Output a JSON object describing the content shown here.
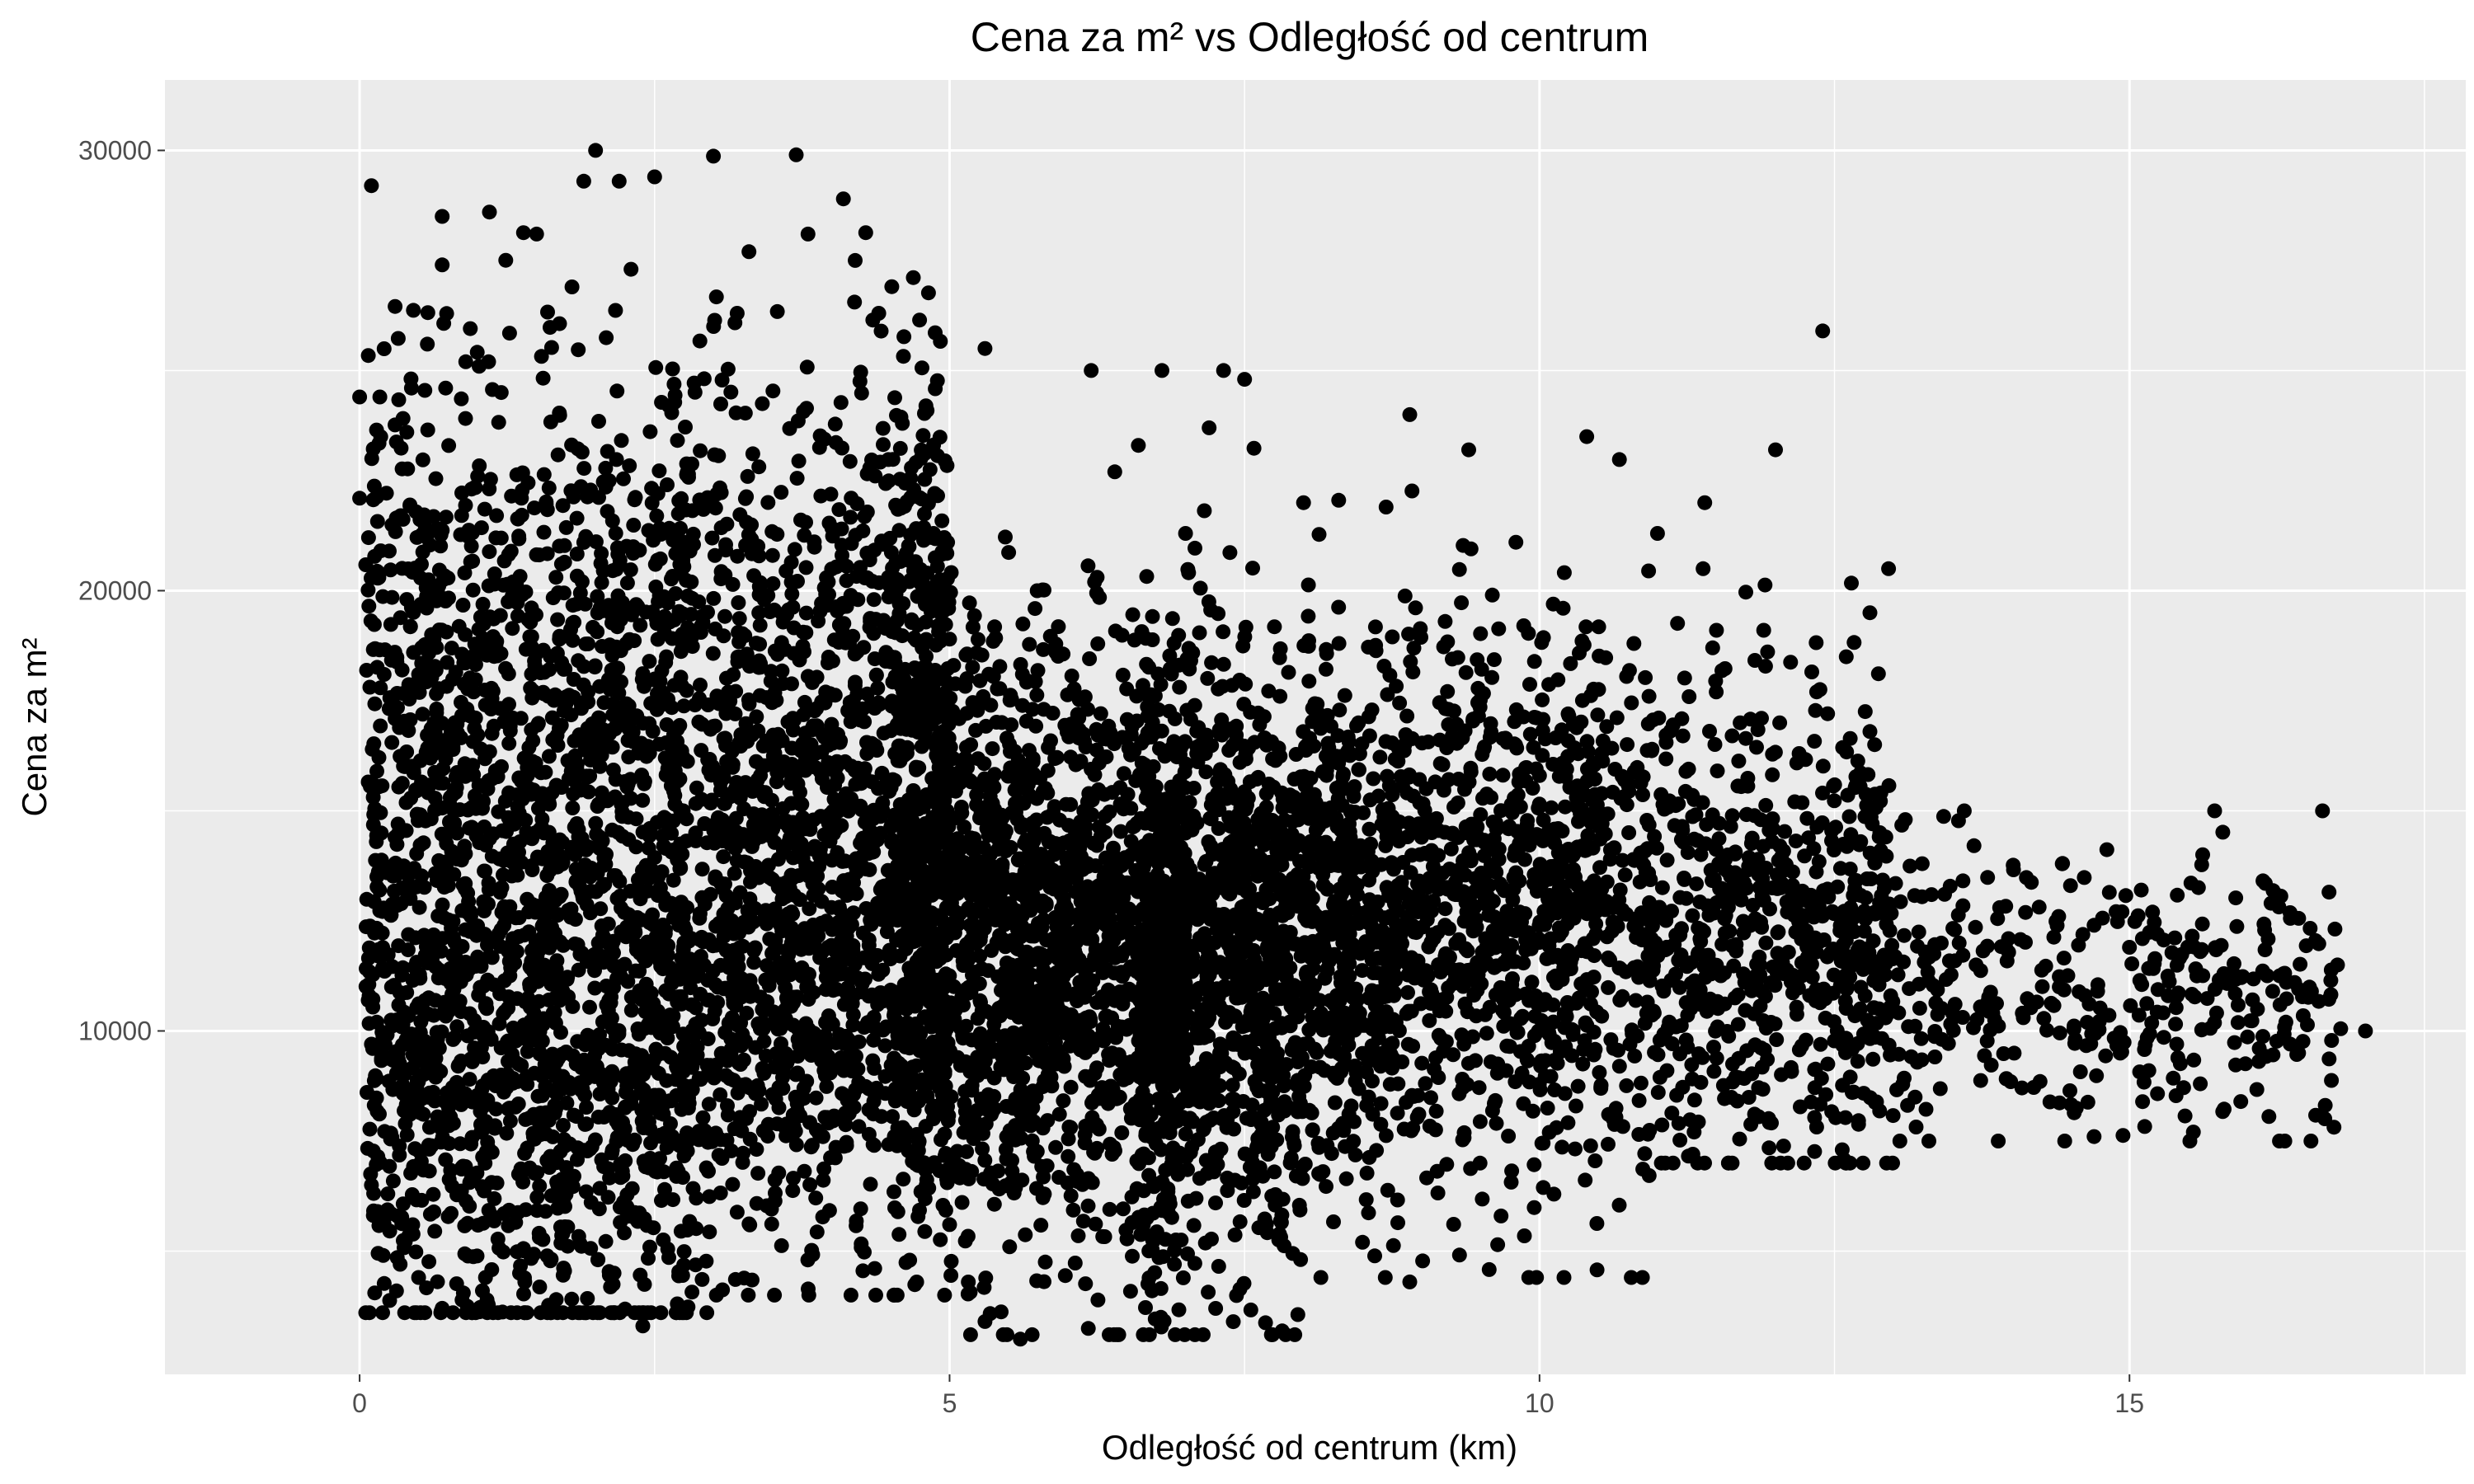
{
  "chart_data": {
    "type": "scatter",
    "title": "Cena za m² vs Odległość od centrum",
    "xlabel": "Odległość od centrum (km)",
    "ylabel": "Cena za m²",
    "xlim": [
      -1.65,
      17.85
    ],
    "ylim": [
      2200,
      31600
    ],
    "x_ticks": [
      0,
      5,
      10,
      15
    ],
    "x_tick_labels": [
      "0",
      "5",
      "10",
      "15"
    ],
    "y_ticks": [
      10000,
      20000,
      30000
    ],
    "y_tick_labels": [
      "10000",
      "20000",
      "30000"
    ],
    "x_minor_gridlines": [
      2.5,
      7.5,
      12.5,
      17.5
    ],
    "y_minor_gridlines": [
      5000,
      15000,
      25000
    ],
    "grid": true,
    "legend": "none",
    "colors": {
      "panel_background": "#ebebeb",
      "gridline": "#ffffff",
      "point": "#000000"
    },
    "approx_point_count": 9000,
    "points_sample": [
      [
        0.0,
        22100
      ],
      [
        0.0,
        24400
      ],
      [
        0.1,
        29200
      ],
      [
        0.1,
        9700
      ],
      [
        0.1,
        6500
      ],
      [
        0.2,
        4900
      ],
      [
        0.3,
        14400
      ],
      [
        0.4,
        23600
      ],
      [
        0.4,
        19800
      ],
      [
        0.5,
        18100
      ],
      [
        0.5,
        4400
      ],
      [
        0.7,
        28500
      ],
      [
        0.7,
        27400
      ],
      [
        0.7,
        3700
      ],
      [
        0.8,
        15000
      ],
      [
        0.9,
        25200
      ],
      [
        1.0,
        22600
      ],
      [
        1.1,
        28600
      ],
      [
        1.2,
        24500
      ],
      [
        1.3,
        20200
      ],
      [
        1.4,
        4300
      ],
      [
        1.5,
        28100
      ],
      [
        1.6,
        17600
      ],
      [
        1.8,
        26900
      ],
      [
        1.9,
        29300
      ],
      [
        2.0,
        30000
      ],
      [
        2.1,
        21800
      ],
      [
        2.2,
        29300
      ],
      [
        2.3,
        27300
      ],
      [
        2.4,
        3300
      ],
      [
        2.5,
        29400
      ],
      [
        2.6,
        18500
      ],
      [
        2.8,
        20900
      ],
      [
        3.0,
        26000
      ],
      [
        3.2,
        26300
      ],
      [
        3.3,
        27700
      ],
      [
        3.5,
        20800
      ],
      [
        3.7,
        29900
      ],
      [
        3.8,
        28100
      ],
      [
        4.0,
        14500
      ],
      [
        4.1,
        28900
      ],
      [
        4.2,
        27500
      ],
      [
        4.4,
        26300
      ],
      [
        4.6,
        23800
      ],
      [
        4.8,
        24200
      ],
      [
        5.0,
        18900
      ],
      [
        5.0,
        5600
      ],
      [
        5.3,
        25500
      ],
      [
        5.3,
        3400
      ],
      [
        5.6,
        3000
      ],
      [
        5.7,
        13400
      ],
      [
        5.9,
        18600
      ],
      [
        6.2,
        25000
      ],
      [
        6.4,
        22700
      ],
      [
        6.6,
        23300
      ],
      [
        6.8,
        25000
      ],
      [
        7.0,
        21300
      ],
      [
        7.2,
        23700
      ],
      [
        7.5,
        24800
      ],
      [
        7.8,
        17600
      ],
      [
        8.0,
        22000
      ],
      [
        8.3,
        18800
      ],
      [
        8.5,
        5200
      ],
      [
        8.7,
        21900
      ],
      [
        8.9,
        24000
      ],
      [
        8.9,
        4300
      ],
      [
        9.0,
        14400
      ],
      [
        9.2,
        19300
      ],
      [
        9.4,
        23200
      ],
      [
        9.6,
        19900
      ],
      [
        9.8,
        21100
      ],
      [
        10.0,
        15800
      ],
      [
        10.2,
        19600
      ],
      [
        10.4,
        23500
      ],
      [
        10.6,
        13900
      ],
      [
        10.8,
        18800
      ],
      [
        11.0,
        21300
      ],
      [
        11.1,
        10200
      ],
      [
        11.3,
        7200
      ],
      [
        11.4,
        22000
      ],
      [
        11.7,
        17000
      ],
      [
        11.9,
        19100
      ],
      [
        12.0,
        23200
      ],
      [
        12.2,
        16300
      ],
      [
        12.4,
        25900
      ],
      [
        12.6,
        18500
      ],
      [
        12.8,
        16800
      ],
      [
        12.8,
        19500
      ],
      [
        13.1,
        14800
      ],
      [
        13.3,
        7500
      ],
      [
        13.4,
        10500
      ],
      [
        13.6,
        15000
      ],
      [
        13.7,
        11500
      ],
      [
        13.9,
        12800
      ],
      [
        14.1,
        10300
      ],
      [
        14.4,
        12600
      ],
      [
        14.5,
        13300
      ],
      [
        14.7,
        7600
      ],
      [
        14.7,
        12400
      ],
      [
        15.0,
        11900
      ],
      [
        15.1,
        13200
      ],
      [
        15.4,
        9700
      ],
      [
        15.6,
        11800
      ],
      [
        15.6,
        8800
      ],
      [
        15.8,
        11300
      ],
      [
        16.1,
        9600
      ],
      [
        16.2,
        12900
      ],
      [
        16.4,
        11100
      ],
      [
        17.0,
        10000
      ]
    ]
  }
}
